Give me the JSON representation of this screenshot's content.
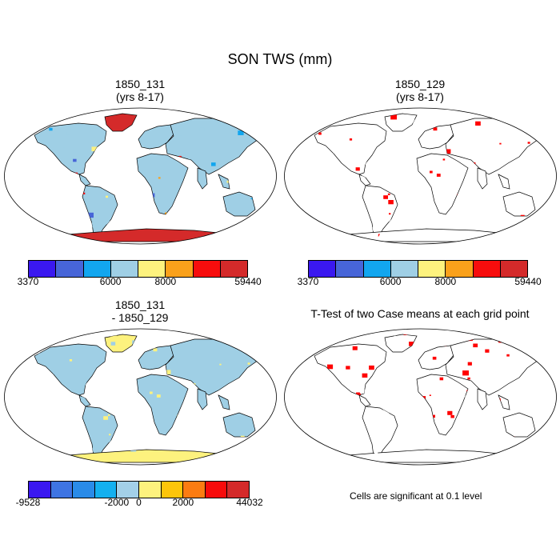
{
  "title": "SON TWS (mm)",
  "panels": {
    "tl": {
      "title1": "1850_131",
      "title2": "(yrs 8-17)"
    },
    "tr": {
      "title1": "1850_129",
      "title2": "(yrs 8-17)"
    },
    "bl": {
      "title1": "1850_131",
      "title2": "- 1850_129"
    },
    "br": {
      "title1": "T-Test of two Case means at each grid point"
    }
  },
  "colorbar_top": {
    "colors": [
      "#3a18f0",
      "#4765d8",
      "#12a6ef",
      "#9fcfe5",
      "#fdf27e",
      "#faa11b",
      "#f70d0d",
      "#d42a2a"
    ],
    "labels": [
      "3370",
      "6000",
      "8000",
      "59440"
    ]
  },
  "colorbar_diff": {
    "colors": [
      "#3a18f0",
      "#3e74e3",
      "#2a8be8",
      "#14b0ef",
      "#a3d0e8",
      "#fdf27e",
      "#fdc50a",
      "#fb7c12",
      "#f70b0b",
      "#d42a2a"
    ],
    "labels": [
      "-9528",
      "-2000",
      "0",
      "2000",
      "44032"
    ]
  },
  "note": "Cells are significant at 0.1 level",
  "map_colors": {
    "land_top": "#9fcfe5",
    "land_diff": "#fdf27e",
    "ttest": "#ff0000",
    "antarctica_top": "#d42a2a",
    "greenland_top": "#d42a2a"
  }
}
